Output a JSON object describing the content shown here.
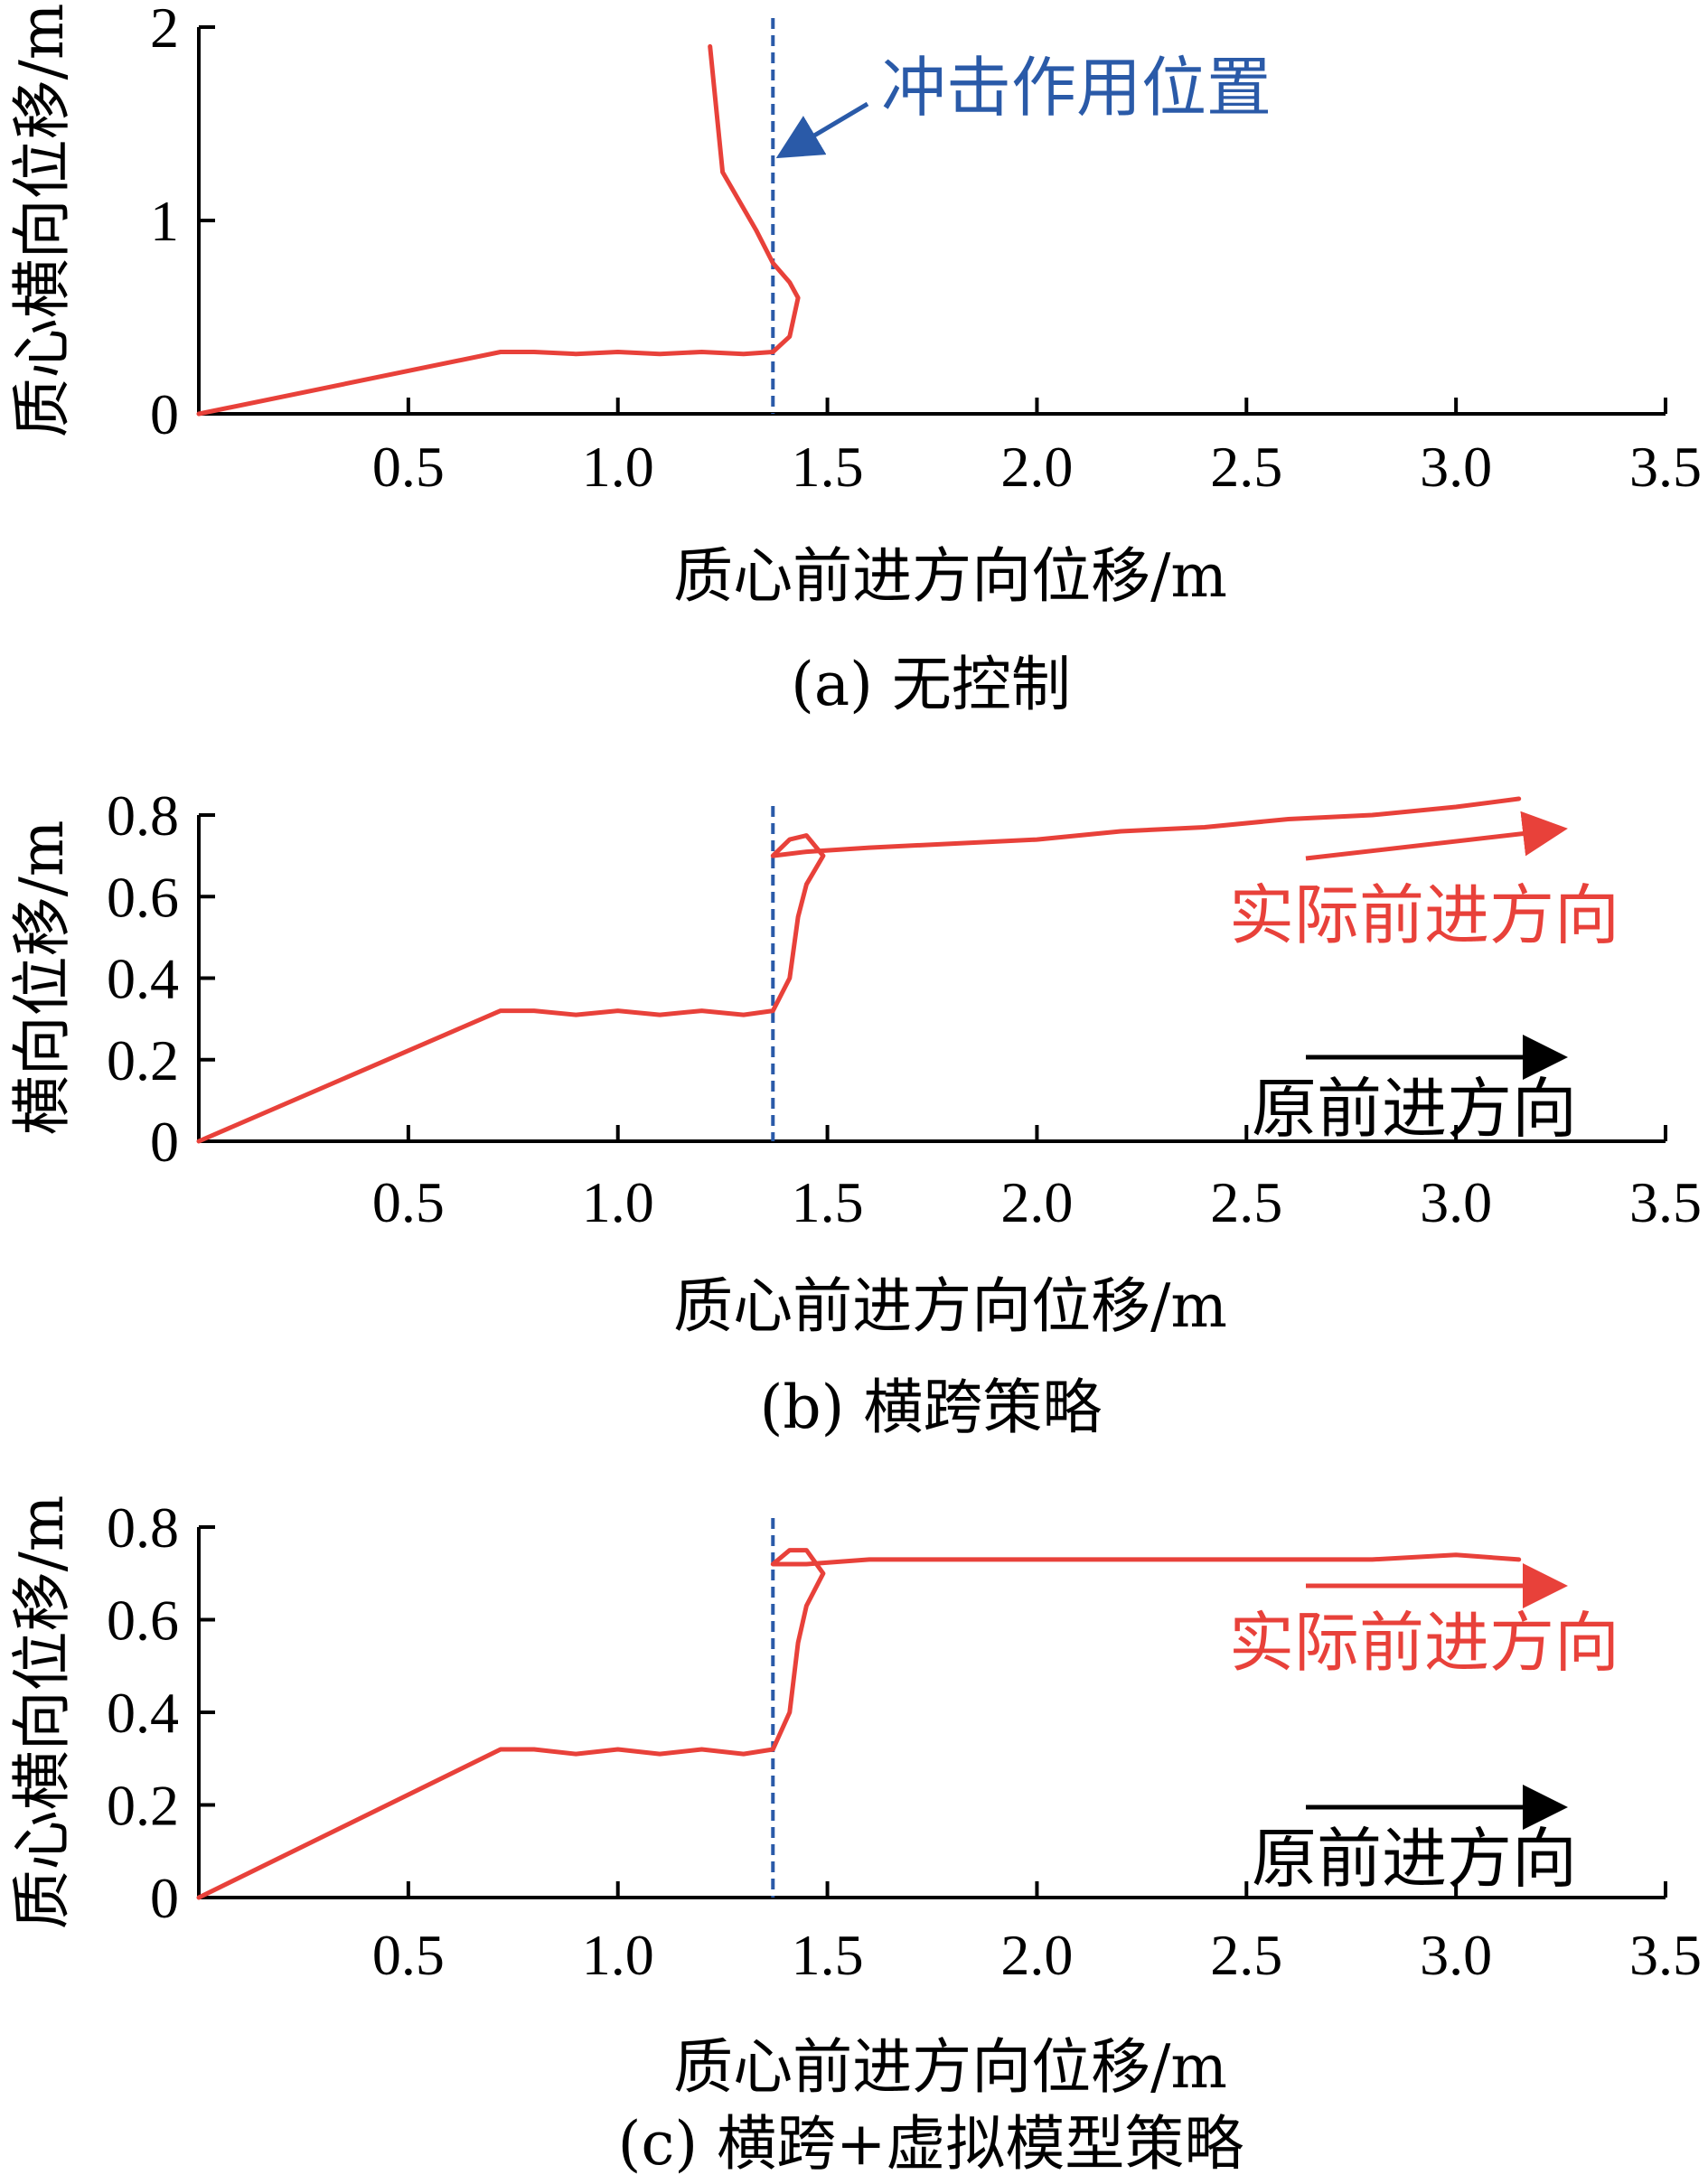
{
  "colors": {
    "trajectory": "#e8413a",
    "impact_line": "#2a5aa8",
    "axis": "#000000",
    "arrow_black": "#000000"
  },
  "chart_data": [
    {
      "type": "line",
      "caption": "(a) 无控制",
      "xlabel": "质心前进方向位移/m",
      "ylabel": "质心横向位移/m",
      "xlim": [
        0,
        3.5
      ],
      "ylim": [
        0,
        2
      ],
      "xticks": [
        "0.5",
        "1.0",
        "1.5",
        "2.0",
        "2.5",
        "3.0",
        "3.5"
      ],
      "yticks": [
        "0",
        "1",
        "2"
      ],
      "grid": false,
      "impact_x": 1.37,
      "impact_label": "冲击作用位置",
      "series": [
        {
          "points": [
            [
              0,
              0
            ],
            [
              0.72,
              0.32
            ],
            [
              0.8,
              0.32
            ],
            [
              0.9,
              0.31
            ],
            [
              1.0,
              0.32
            ],
            [
              1.1,
              0.31
            ],
            [
              1.2,
              0.32
            ],
            [
              1.3,
              0.31
            ],
            [
              1.37,
              0.32
            ],
            [
              1.41,
              0.4
            ],
            [
              1.43,
              0.6
            ],
            [
              1.41,
              0.68
            ],
            [
              1.37,
              0.78
            ],
            [
              1.33,
              0.95
            ],
            [
              1.25,
              1.25
            ],
            [
              1.22,
              1.9
            ]
          ]
        }
      ]
    },
    {
      "type": "line",
      "caption": "(b) 横跨策略",
      "xlabel": "质心前进方向位移/m",
      "ylabel": "横向位移/m",
      "xlim": [
        0,
        3.5
      ],
      "ylim": [
        0,
        0.8
      ],
      "xticks": [
        "0.5",
        "1.0",
        "1.5",
        "2.0",
        "2.5",
        "3.0",
        "3.5"
      ],
      "yticks": [
        "0",
        "0.2",
        "0.4",
        "0.6",
        "0.8"
      ],
      "grid": false,
      "impact_x": 1.37,
      "actual_direction_label": "实际前进方向",
      "original_direction_label": "原前进方向",
      "series": [
        {
          "points": [
            [
              0,
              0
            ],
            [
              0.72,
              0.32
            ],
            [
              0.8,
              0.32
            ],
            [
              0.9,
              0.31
            ],
            [
              1.0,
              0.32
            ],
            [
              1.1,
              0.31
            ],
            [
              1.2,
              0.32
            ],
            [
              1.3,
              0.31
            ],
            [
              1.37,
              0.32
            ],
            [
              1.41,
              0.4
            ],
            [
              1.43,
              0.55
            ],
            [
              1.45,
              0.63
            ],
            [
              1.49,
              0.7
            ],
            [
              1.45,
              0.75
            ],
            [
              1.41,
              0.74
            ],
            [
              1.37,
              0.7
            ],
            [
              1.45,
              0.71
            ],
            [
              1.6,
              0.72
            ],
            [
              1.8,
              0.73
            ],
            [
              2.0,
              0.74
            ],
            [
              2.2,
              0.76
            ],
            [
              2.4,
              0.77
            ],
            [
              2.6,
              0.79
            ],
            [
              2.8,
              0.8
            ],
            [
              3.0,
              0.82
            ],
            [
              3.15,
              0.84
            ]
          ]
        }
      ]
    },
    {
      "type": "line",
      "caption": "(c) 横跨+虚拟模型策略",
      "xlabel": "质心前进方向位移/m",
      "ylabel": "质心横向位移/m",
      "xlim": [
        0,
        3.5
      ],
      "ylim": [
        0,
        0.8
      ],
      "xticks": [
        "0.5",
        "1.0",
        "1.5",
        "2.0",
        "2.5",
        "3.0",
        "3.5"
      ],
      "yticks": [
        "0",
        "0.2",
        "0.4",
        "0.6",
        "0.8"
      ],
      "grid": false,
      "impact_x": 1.37,
      "actual_direction_label": "实际前进方向",
      "original_direction_label": "原前进方向",
      "series": [
        {
          "points": [
            [
              0,
              0
            ],
            [
              0.72,
              0.32
            ],
            [
              0.8,
              0.32
            ],
            [
              0.9,
              0.31
            ],
            [
              1.0,
              0.32
            ],
            [
              1.1,
              0.31
            ],
            [
              1.2,
              0.32
            ],
            [
              1.3,
              0.31
            ],
            [
              1.37,
              0.32
            ],
            [
              1.41,
              0.4
            ],
            [
              1.43,
              0.55
            ],
            [
              1.45,
              0.63
            ],
            [
              1.49,
              0.7
            ],
            [
              1.45,
              0.75
            ],
            [
              1.41,
              0.75
            ],
            [
              1.37,
              0.72
            ],
            [
              1.45,
              0.72
            ],
            [
              1.6,
              0.73
            ],
            [
              1.8,
              0.73
            ],
            [
              2.0,
              0.73
            ],
            [
              2.2,
              0.73
            ],
            [
              2.4,
              0.73
            ],
            [
              2.6,
              0.73
            ],
            [
              2.8,
              0.73
            ],
            [
              3.0,
              0.74
            ],
            [
              3.15,
              0.73
            ]
          ]
        }
      ]
    }
  ]
}
